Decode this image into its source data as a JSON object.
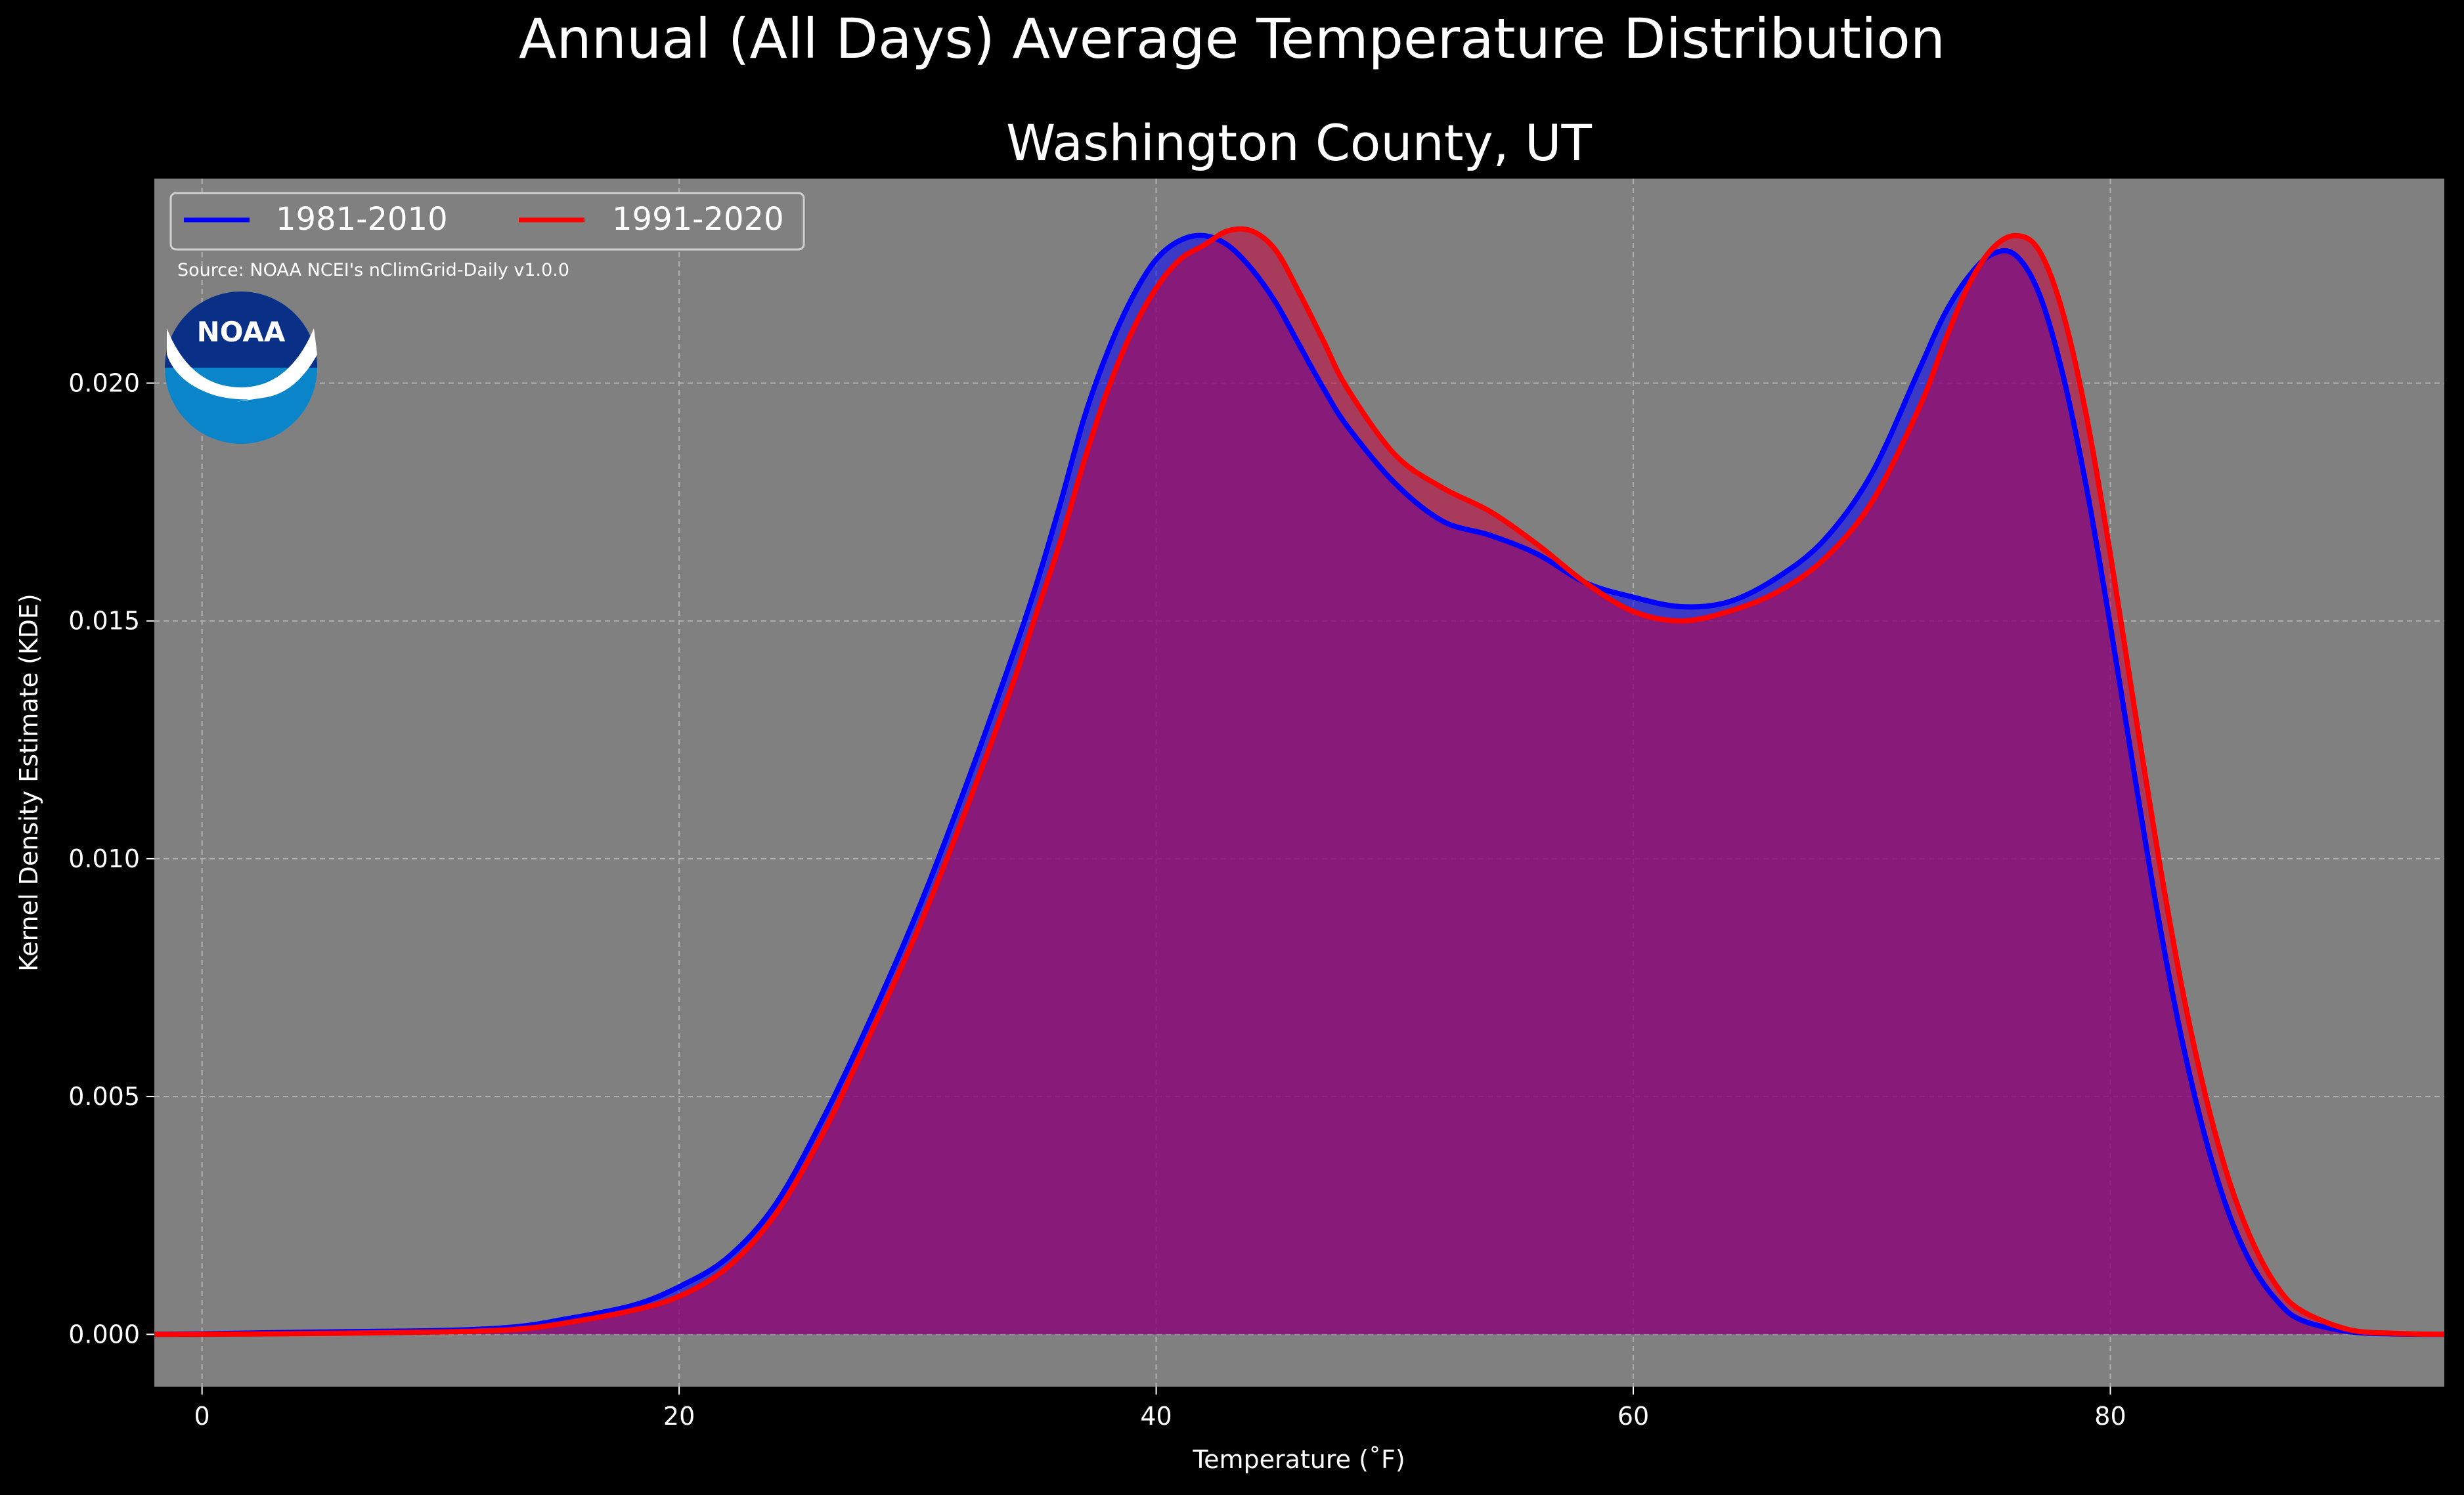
{
  "chart_data": {
    "type": "area",
    "title": "Annual (All Days) Average Temperature Distribution",
    "subtitle": "Washington County, UT",
    "xlabel": "Temperature ($^\\circ$F)",
    "xlabel_display": "Temperature (˚F)",
    "ylabel": "Kernel Density Estimate (KDE)",
    "xlim": [
      -2,
      94
    ],
    "ylim": [
      -0.0011,
      0.0243
    ],
    "xticks": [
      0,
      20,
      40,
      60,
      80
    ],
    "xtick_labels": [
      "0",
      "20",
      "40",
      "60",
      "80"
    ],
    "yticks": [
      0.0,
      0.005,
      0.01,
      0.015,
      0.02
    ],
    "ytick_labels": [
      "0.000",
      "0.005",
      "0.010",
      "0.015",
      "0.020"
    ],
    "grid": true,
    "legend_placement": "top-left",
    "background_color": "#808080",
    "figure_color": "#000000",
    "source_text": "Source: NOAA NCEI's nClimGrid-Daily v1.0.0",
    "logo_text": "NOAA",
    "series": [
      {
        "name": "1981-2010",
        "color": "#0000ff",
        "fill": "rgba(0,0,255,0.55)",
        "x": [
          -2,
          0,
          5,
          10,
          13,
          15,
          18,
          20,
          22,
          24,
          26,
          28,
          30,
          32,
          34,
          35,
          36,
          37,
          38,
          39,
          40,
          41,
          42,
          43,
          44,
          45,
          46,
          47,
          48,
          50,
          52,
          54,
          56,
          58,
          60,
          62,
          64,
          66,
          68,
          70,
          72,
          73,
          74,
          75,
          76,
          77,
          78,
          79,
          80,
          81,
          82,
          83,
          84,
          85,
          86,
          87,
          88,
          90,
          92,
          94
        ],
        "y": [
          0.0,
          1e-05,
          5e-05,
          8e-05,
          0.00015,
          0.0003,
          0.0006,
          0.001,
          0.0016,
          0.0027,
          0.0045,
          0.0066,
          0.0089,
          0.0115,
          0.0143,
          0.0158,
          0.0175,
          0.0193,
          0.0207,
          0.0218,
          0.0226,
          0.023,
          0.0231,
          0.0229,
          0.0224,
          0.0217,
          0.0208,
          0.0199,
          0.0191,
          0.0179,
          0.0171,
          0.0168,
          0.0164,
          0.0158,
          0.0155,
          0.0153,
          0.0154,
          0.0159,
          0.0167,
          0.0181,
          0.0203,
          0.0214,
          0.0222,
          0.0227,
          0.0227,
          0.0219,
          0.0202,
          0.0178,
          0.0149,
          0.0118,
          0.0088,
          0.0062,
          0.0041,
          0.0025,
          0.0014,
          0.0007,
          0.0003,
          6e-05,
          1e-05,
          0.0
        ]
      },
      {
        "name": "1991-2020",
        "color": "#ff0000",
        "fill": "rgba(200,0,60,0.55)",
        "x": [
          -2,
          0,
          5,
          10,
          13,
          15,
          18,
          20,
          22,
          24,
          26,
          28,
          30,
          32,
          34,
          35,
          36,
          37,
          38,
          39,
          40,
          41,
          42,
          43,
          44,
          45,
          46,
          47,
          48,
          50,
          52,
          54,
          56,
          58,
          60,
          62,
          64,
          66,
          68,
          70,
          72,
          73,
          74,
          75,
          76,
          77,
          78,
          79,
          80,
          81,
          82,
          83,
          84,
          85,
          86,
          87,
          88,
          90,
          92,
          94
        ],
        "y": [
          0.0,
          0.0,
          2e-05,
          5e-05,
          0.0001,
          0.00022,
          0.0005,
          0.0008,
          0.0014,
          0.0025,
          0.0042,
          0.0063,
          0.0085,
          0.011,
          0.0137,
          0.0152,
          0.0167,
          0.0184,
          0.0199,
          0.0211,
          0.022,
          0.0226,
          0.0229,
          0.0232,
          0.0232,
          0.0228,
          0.0219,
          0.0209,
          0.0199,
          0.0185,
          0.0178,
          0.0173,
          0.0166,
          0.0158,
          0.0152,
          0.015,
          0.0152,
          0.0156,
          0.0163,
          0.0175,
          0.0195,
          0.0208,
          0.022,
          0.0228,
          0.0231,
          0.0228,
          0.0215,
          0.0193,
          0.0164,
          0.0132,
          0.0101,
          0.0073,
          0.005,
          0.0032,
          0.0019,
          0.001,
          0.0005,
          0.0001,
          2e-05,
          0.0
        ]
      }
    ]
  }
}
